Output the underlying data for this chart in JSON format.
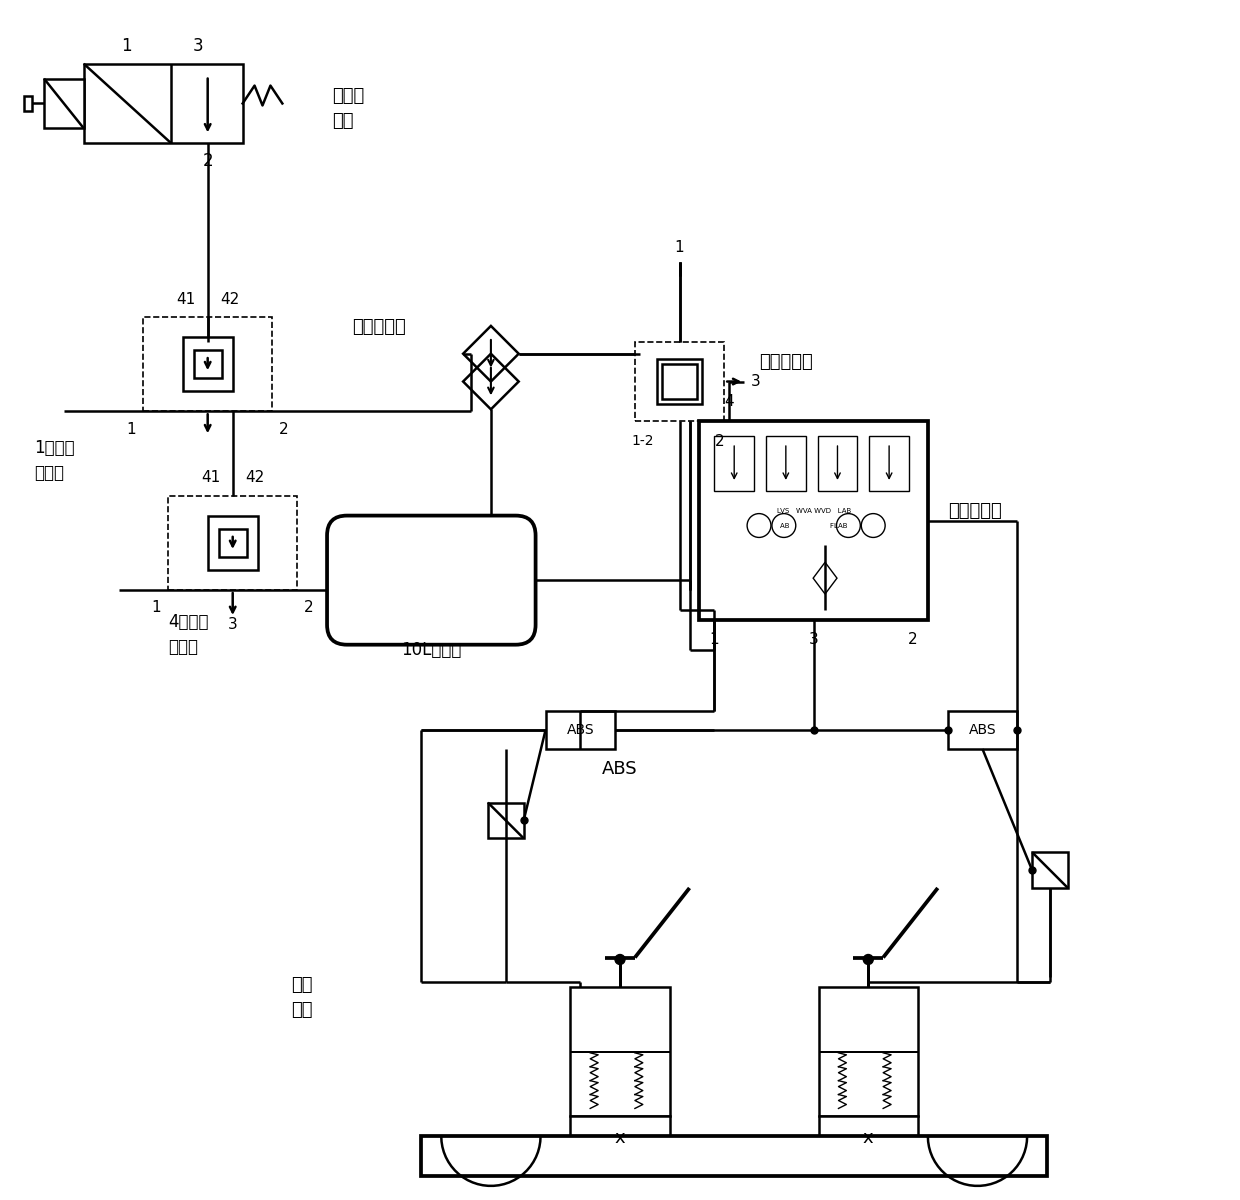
{
  "background_color": "#ffffff",
  "line_color": "#000000",
  "lw": 1.8,
  "labels": {
    "changbi_dianciafa": "常闭电\n磁阀",
    "shuangtong_danxiangfa": "双通单向阀",
    "jinji_jidongfa": "紧急继动阀",
    "dantongdao_mokuai": "单通道模块",
    "hao1_shuangkong_jidongfa": "1号双控\n继动阀",
    "hao4_shuangkong_jidongfa": "4号双控\n继动阀",
    "tank": "10L储气筒",
    "ABS": "ABS",
    "brake": "制动\n气室"
  }
}
